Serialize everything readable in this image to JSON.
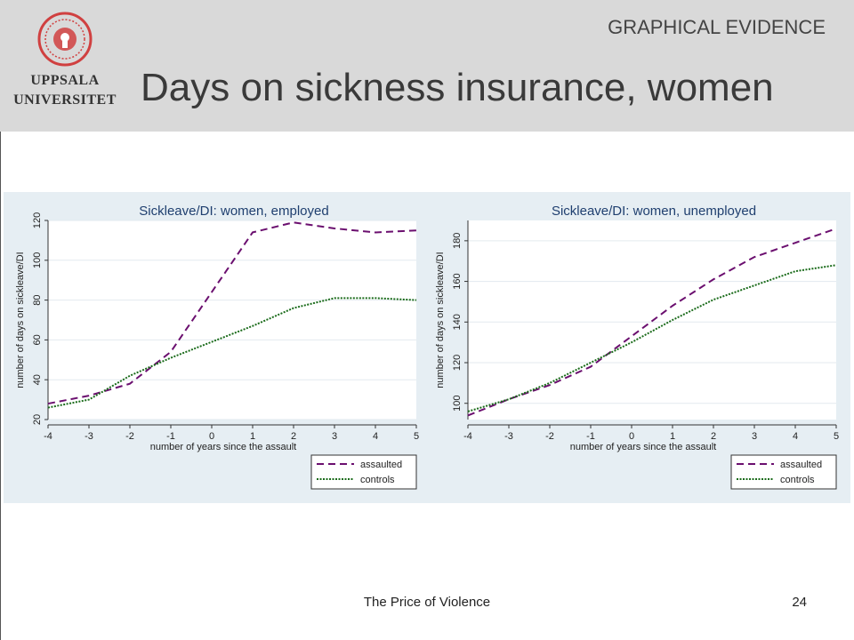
{
  "header": {
    "section_label": "GRAPHICAL EVIDENCE",
    "title": "Days on sickness insurance, women",
    "logo_line1": "UPPSALA",
    "logo_line2": "UNIVERSITET"
  },
  "footer": {
    "text": "The Price of Violence",
    "page_number": "24"
  },
  "colors": {
    "assaulted": "#6b0f6f",
    "controls": "#1a6b1a",
    "axis_title": "#1f3f6f",
    "logo": "#d04040"
  },
  "chart_data": [
    {
      "type": "line",
      "title": "Sickleave/DI: women, employed",
      "xlabel": "number of years since the assault",
      "ylabel": "number of days on sickleave/DI",
      "x": [
        -4,
        -3,
        -2,
        -1,
        0,
        1,
        2,
        3,
        4,
        5
      ],
      "xticks": [
        "-4",
        "-3",
        "-2",
        "-1",
        "0",
        "1",
        "2",
        "3",
        "4",
        "5"
      ],
      "yticks": [
        "20",
        "40",
        "60",
        "80",
        "100",
        "120"
      ],
      "ylim": [
        20,
        120
      ],
      "xlim": [
        -4,
        5
      ],
      "grid": true,
      "legend_position": "bottom-right",
      "series": [
        {
          "name": "assaulted",
          "values": [
            28,
            32,
            38,
            54,
            84,
            114,
            119,
            116,
            114,
            115
          ]
        },
        {
          "name": "controls",
          "values": [
            26,
            30,
            42,
            51,
            59,
            67,
            76,
            81,
            81,
            80
          ]
        }
      ]
    },
    {
      "type": "line",
      "title": "Sickleave/DI: women, unemployed",
      "xlabel": "number of years since the assault",
      "ylabel": "number of days on sickleave/DI",
      "x": [
        -4,
        -3,
        -2,
        -1,
        0,
        1,
        2,
        3,
        4,
        5
      ],
      "xticks": [
        "-4",
        "-3",
        "-2",
        "-1",
        "0",
        "1",
        "2",
        "3",
        "4",
        "5"
      ],
      "yticks": [
        "100",
        "120",
        "140",
        "160",
        "180"
      ],
      "ylim": [
        92,
        190
      ],
      "xlim": [
        -4,
        5
      ],
      "grid": true,
      "legend_position": "bottom-right",
      "series": [
        {
          "name": "assaulted",
          "values": [
            94,
            102,
            109,
            118,
            133,
            148,
            161,
            172,
            179,
            186
          ]
        },
        {
          "name": "controls",
          "values": [
            96,
            102,
            110,
            120,
            130,
            141,
            151,
            158,
            165,
            168
          ]
        }
      ]
    }
  ]
}
